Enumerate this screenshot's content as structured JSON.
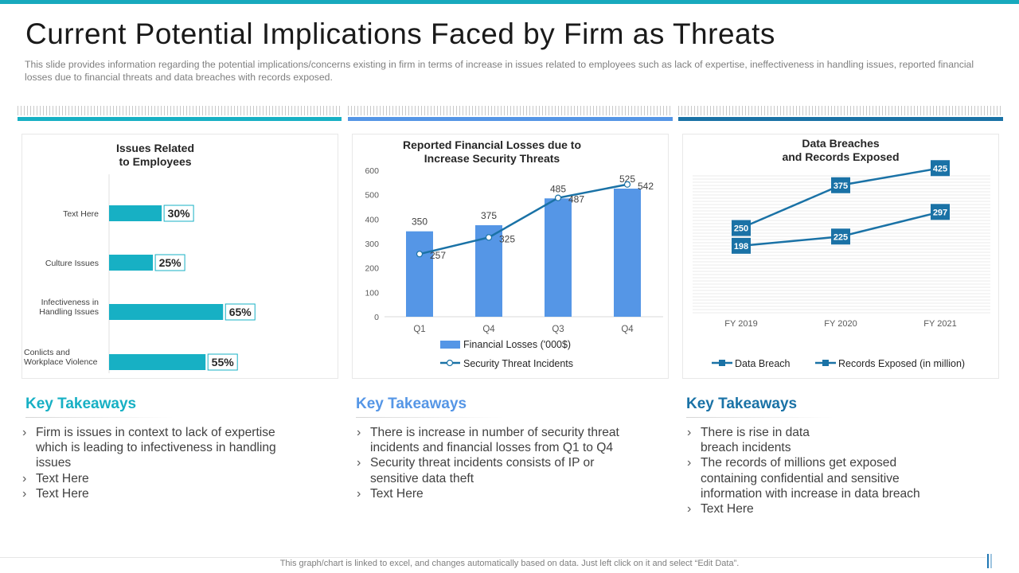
{
  "slide": {
    "title": "Current Potential Implications Faced by Firm as Threats",
    "description": "This slide provides information regarding the potential implications/concerns existing in firm in terms of increase in issues related to employees such as lack of expertise, ineffectiveness in handling issues, reported financial losses due to financial threats and data breaches with records exposed.",
    "footer_note": "This graph/chart is linked to excel, and changes automatically based on data. Just left click on it and select “Edit Data”."
  },
  "colors": {
    "teal": "#17b0c4",
    "blue": "#5596e6",
    "darkblue": "#1a72a6"
  },
  "chart_data": [
    {
      "type": "bar",
      "orientation": "horizontal",
      "title_line1": "Issues Related",
      "title_line2": "to Employees",
      "categories": [
        {
          "line1": "Text Here",
          "line2": ""
        },
        {
          "line1": "Culture Issues",
          "line2": ""
        },
        {
          "line1": "Infectiveness in",
          "line2": "Handling Issues"
        },
        {
          "line1": "Conlicts and",
          "line2": "Workplace Violence"
        }
      ],
      "values": [
        30,
        25,
        65,
        55
      ],
      "value_labels": [
        "30%",
        "25%",
        "65%",
        "55%"
      ],
      "xlim": [
        0,
        100
      ]
    },
    {
      "type": "bar+line",
      "title_line1": "Reported Financial Losses due to",
      "title_line2": "Increase Security Threats",
      "categories": [
        "Q1",
        "Q4",
        "Q3",
        "Q4"
      ],
      "ylim": [
        0,
        600
      ],
      "yticks": [
        "0",
        "100",
        "200",
        "300",
        "400",
        "500",
        "600"
      ],
      "series": [
        {
          "name": "Financial Losses  ('000$)",
          "kind": "bar",
          "values": [
            350,
            375,
            485,
            525
          ],
          "labels": [
            "350",
            "375",
            "485",
            "525"
          ]
        },
        {
          "name": "Security Threat Incidents",
          "kind": "line",
          "values": [
            257,
            325,
            487,
            542
          ],
          "labels": [
            "257",
            "325",
            "487",
            "542"
          ]
        }
      ]
    },
    {
      "type": "line",
      "title_line1": "Data Breaches",
      "title_line2": "and Records Exposed",
      "categories": [
        "FY 2019",
        "FY 2020",
        "FY 2021"
      ],
      "ylim": [
        0,
        500
      ],
      "series": [
        {
          "name": "Data Breach",
          "values": [
            250,
            375,
            425
          ],
          "labels": [
            "250",
            "375",
            "425"
          ]
        },
        {
          "name": "Records Exposed (in million)",
          "values": [
            198,
            225,
            297
          ],
          "labels": [
            "198",
            "225",
            "297"
          ]
        }
      ]
    }
  ],
  "takeaways": [
    {
      "heading": "Key Takeaways",
      "items": [
        "Firm is issues in context to lack of expertise which is leading to infectiveness in handling issues",
        "Text Here",
        "Text Here"
      ]
    },
    {
      "heading": "Key Takeaways",
      "items": [
        "There is increase in number of security threat incidents and financial losses from Q1 to Q4",
        "Security threat incidents consists of IP or sensitive data theft",
        "Text Here"
      ]
    },
    {
      "heading": "Key Takeaways",
      "items": [
        "There is rise in data\n breach incidents",
        "The records of millions get exposed containing confidential and sensitive information with increase in data breach",
        "Text Here"
      ]
    }
  ]
}
